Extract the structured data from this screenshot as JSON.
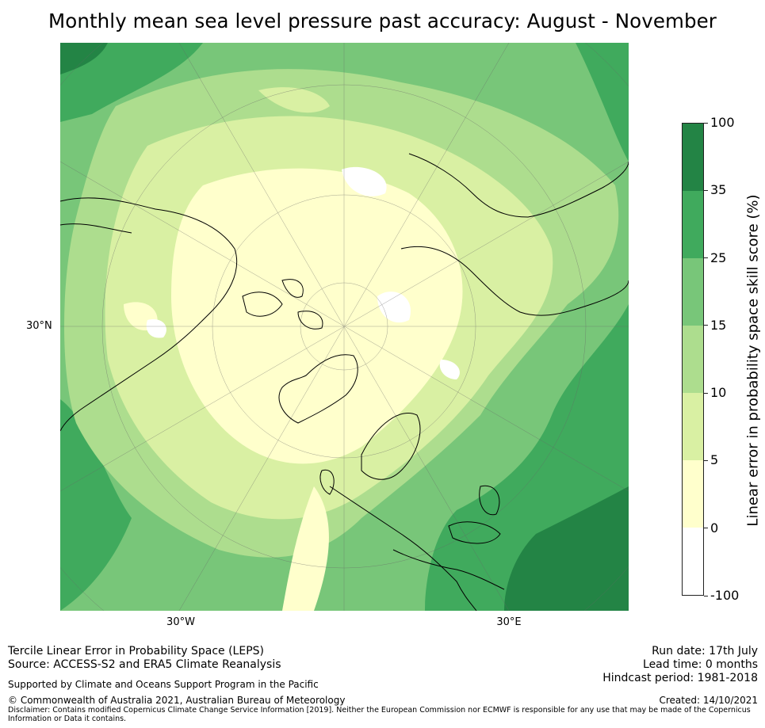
{
  "title": "Monthly mean sea level pressure past accuracy: August - November",
  "map": {
    "lat_label": "30°N",
    "lon_labels": [
      "30°W",
      "30°E"
    ]
  },
  "colorbar": {
    "title": "Linear error in probability space skill score (%)",
    "ticks": [
      "100",
      "35",
      "25",
      "15",
      "10",
      "5",
      "0",
      "-100"
    ],
    "colors_top_to_bottom": [
      "#238445",
      "#40aa5d",
      "#78c679",
      "#addd8e",
      "#d9f0a3",
      "#ffffcc",
      "#ffffff"
    ]
  },
  "footer": {
    "left": {
      "line1": "Tercile Linear Error in Probability Space (LEPS)",
      "line2": "Source: ACCESS-S2 and ERA5 Climate Reanalysis",
      "support": "Supported by Climate and Oceans Support Program in the Pacific",
      "copyright": "© Commonwealth of Australia 2021, Australian Bureau of Meteorology",
      "disclaimer": "Disclaimer: Contains modified Copernicus Climate Change Service Information [2019]. Neither the European Commission nor ECMWF is responsible for any use that may be made of the Copernicus Information or Data it contains."
    },
    "right": {
      "run_date": "Run date: 17th July",
      "lead_time": "Lead time: 0 months",
      "hindcast": "Hindcast period: 1981-2018",
      "created": "Created: 14/10/2021"
    }
  }
}
